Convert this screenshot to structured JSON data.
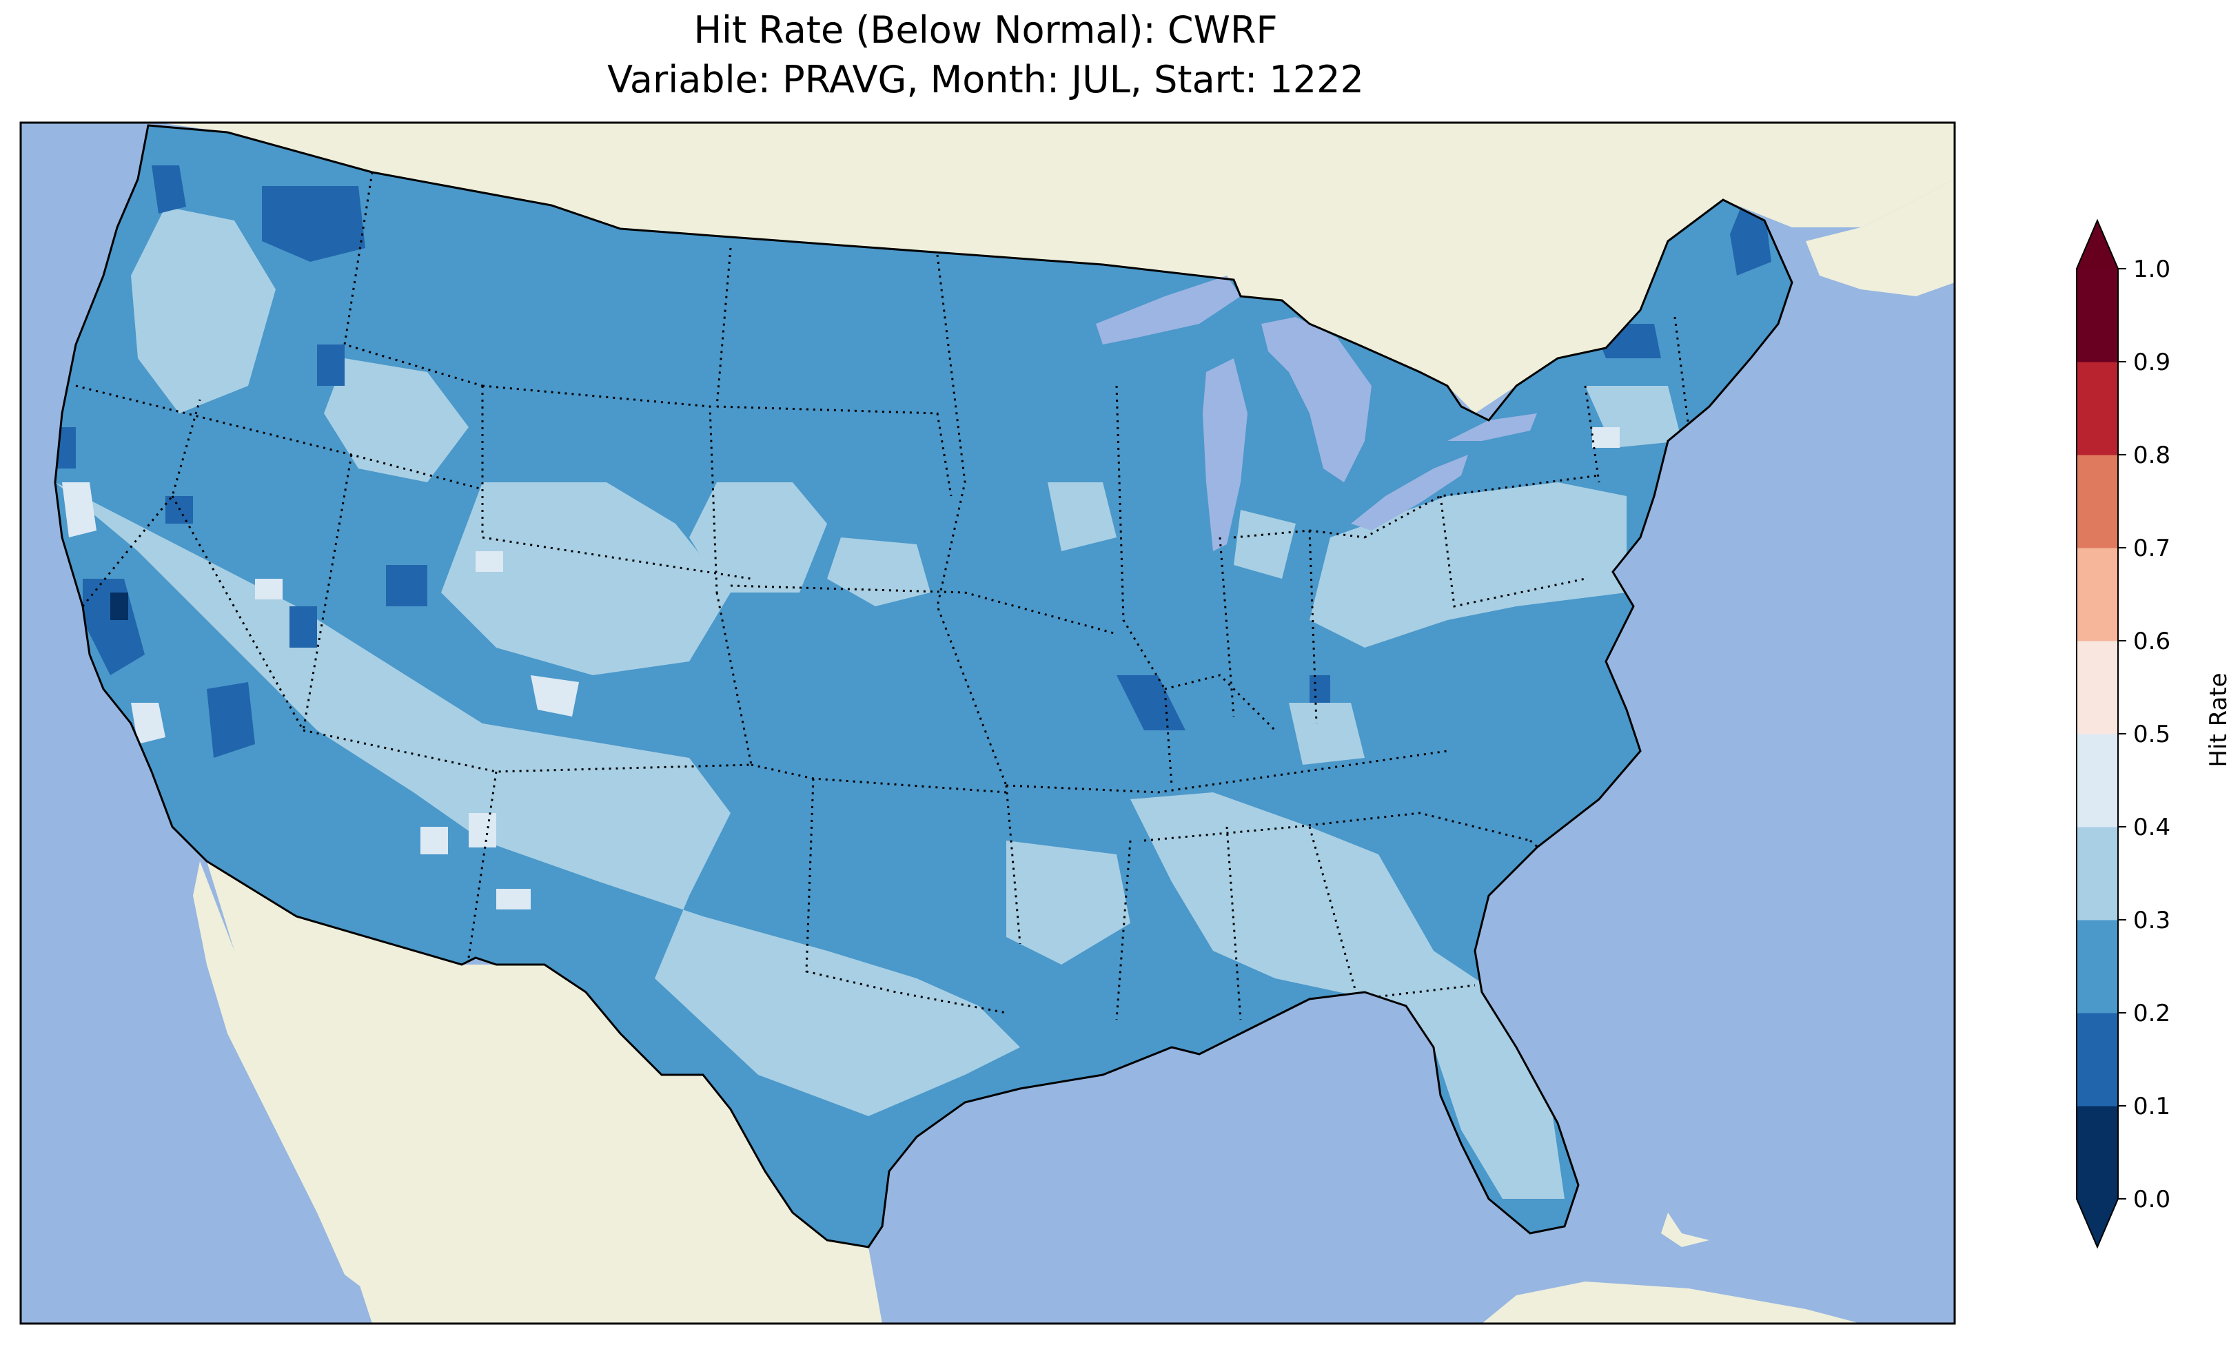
{
  "title": {
    "line1": "Hit Rate (Below Normal): CWRF",
    "line2": "Variable: PRAVG, Month: JUL, Start: 1222"
  },
  "map": {
    "ocean_color": "#97b6e1",
    "land_color": "#efefdb",
    "coastline_color": "#000000",
    "border_style": "dotted"
  },
  "colorbar": {
    "label": "Hit Rate",
    "ticks": [
      "0.0",
      "0.1",
      "0.2",
      "0.3",
      "0.4",
      "0.5",
      "0.6",
      "0.7",
      "0.8",
      "0.9",
      "1.0"
    ],
    "colors": [
      "#053061",
      "#2166ac",
      "#4393c3",
      "#92c5de",
      "#d1e5f0",
      "#f7f7f7",
      "#fddbc7",
      "#f4a582",
      "#d6604d",
      "#b2182b",
      "#67001f"
    ],
    "under_color": "#053061",
    "over_color": "#67001f",
    "bin_colors": [
      "#053061",
      "#2166ac",
      "#4b98ca",
      "#a8cfe4",
      "#dde9f3",
      "#f8e6df",
      "#f5b699",
      "#e07a5f",
      "#b8232f",
      "#6a0021"
    ]
  },
  "legend_levels": {
    "dominant": "#4b98ca",
    "light": "#a8cfe4",
    "dark": "#2166ac",
    "palest": "#dde9f3",
    "darkest": "#053061"
  }
}
